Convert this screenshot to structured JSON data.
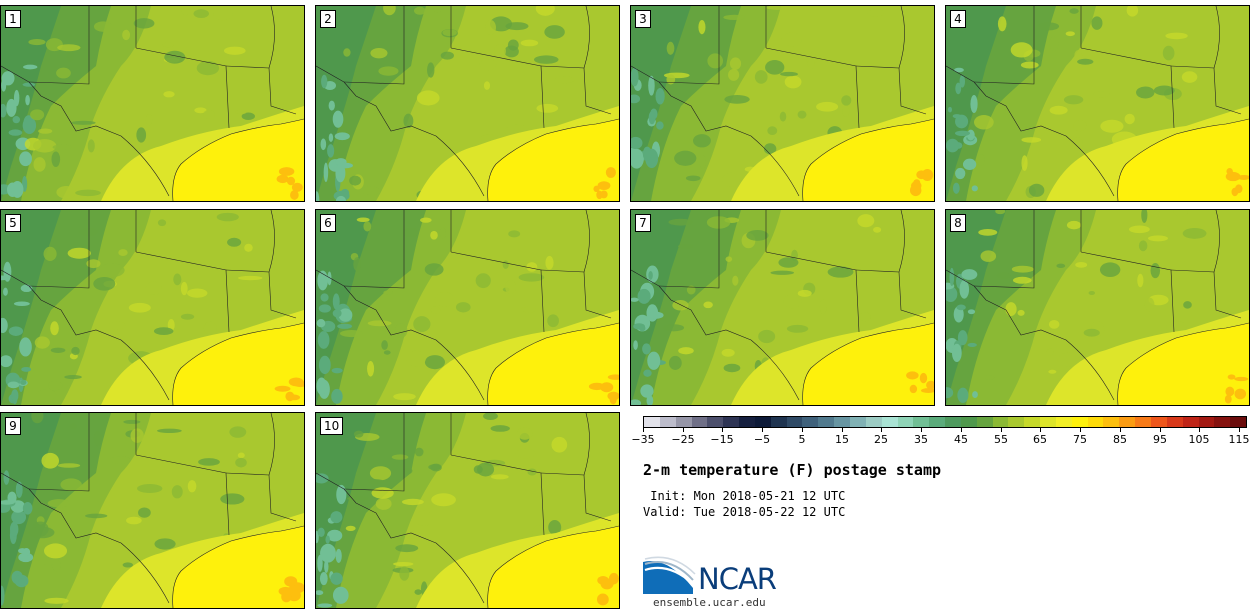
{
  "panels": [
    {
      "label": "1"
    },
    {
      "label": "2"
    },
    {
      "label": "3"
    },
    {
      "label": "4"
    },
    {
      "label": "5"
    },
    {
      "label": "6"
    },
    {
      "label": "7"
    },
    {
      "label": "8"
    },
    {
      "label": "9"
    },
    {
      "label": "10"
    }
  ],
  "colorbar": {
    "colors": [
      "#e2e2ea",
      "#bcbccb",
      "#9696a8",
      "#6f6f87",
      "#4c4f6c",
      "#2e3454",
      "#16203f",
      "#0d1a38",
      "#1f3450",
      "#2f4a66",
      "#3f617b",
      "#517a8e",
      "#6795a2",
      "#80b1b4",
      "#9cccc4",
      "#a9e3d4",
      "#8fd4b7",
      "#71bf95",
      "#5bab7b",
      "#4e9a5e",
      "#4f984c",
      "#66a43f",
      "#8bb934",
      "#a9c82f",
      "#c6d92a",
      "#dde52a",
      "#f2ef26",
      "#fef10c",
      "#fedb09",
      "#fdbf0e",
      "#fb9c13",
      "#f77a18",
      "#ee561b",
      "#d8391a",
      "#bf2417",
      "#a31912",
      "#85120f",
      "#6b0c0c"
    ],
    "ticks": [
      "−35",
      "−25",
      "−15",
      "−5",
      "5",
      "15",
      "25",
      "35",
      "45",
      "55",
      "65",
      "75",
      "85",
      "95",
      "105",
      "115"
    ]
  },
  "title": "2-m temperature (F) postage stamp",
  "init": " Init: Mon 2018-05-21 12 UTC",
  "valid": "Valid: Tue 2018-05-22 12 UTC",
  "logo": {
    "text": "NCAR",
    "url": "ensemble.ucar.edu"
  }
}
